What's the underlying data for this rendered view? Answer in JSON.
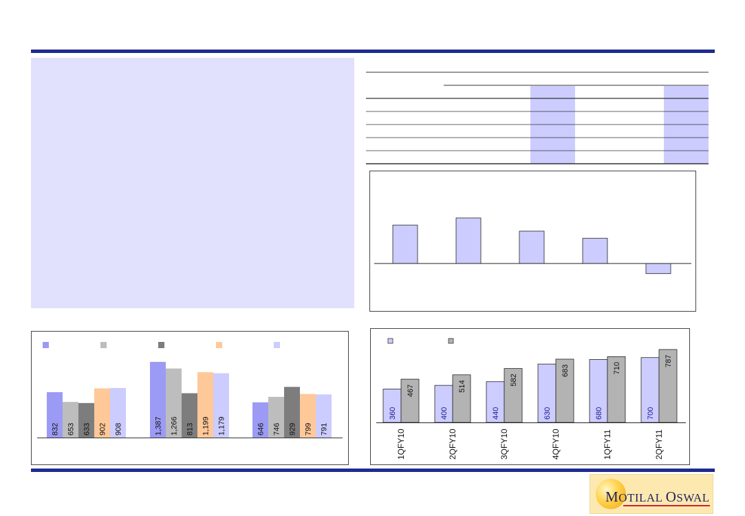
{
  "colors": {
    "brand_bar": "#1f2b8f",
    "text_panel": "#e1e1fe",
    "highlight": "#ccccff"
  },
  "logo": {
    "text_initial_1": "M",
    "text_rest_1": "OTILAL",
    "text_initial_2": "O",
    "text_rest_2": "SWAL"
  },
  "chart_data": [
    {
      "type": "bar",
      "series": [
        {
          "name": "",
          "color": "#9b9bf5",
          "values": [
            832,
            1387,
            646
          ]
        },
        {
          "name": "",
          "color": "#bdbdbd",
          "values": [
            653,
            1266,
            746
          ]
        },
        {
          "name": "",
          "color": "#7d7d7d",
          "values": [
            633,
            813,
            929
          ]
        },
        {
          "name": "",
          "color": "#ffc899",
          "values": [
            902,
            1199,
            799
          ]
        },
        {
          "name": "",
          "color": "#ccccff",
          "values": [
            908,
            1179,
            791
          ]
        }
      ],
      "labels": [
        [
          "832",
          "653",
          "633",
          "902",
          "908"
        ],
        [
          "1,387",
          "1,266",
          "813",
          "1,199",
          "1,179"
        ],
        [
          "646",
          "746",
          "929",
          "799",
          "791"
        ]
      ],
      "ylim": [
        0,
        1600
      ],
      "legend": "top"
    },
    {
      "type": "bar",
      "values": [
        3.8,
        4.5,
        3.2,
        2.5,
        -1.0
      ],
      "ylim": [
        -2.6,
        9.1
      ]
    },
    {
      "type": "bar",
      "categories": [
        "1QFY10",
        "2QFY10",
        "3QFY10",
        "4QFY10",
        "1QFY11",
        "2QFY11"
      ],
      "series": [
        {
          "name": "",
          "color": "#ccccff",
          "values": [
            360,
            400,
            440,
            630,
            680,
            700
          ],
          "labels": [
            "360",
            "400",
            "440",
            "630",
            "680",
            "700"
          ]
        },
        {
          "name": "",
          "color": "#b3b3b3",
          "values": [
            467,
            514,
            582,
            683,
            710,
            787
          ],
          "labels": [
            "467",
            "514",
            "582",
            "683",
            "710",
            "787"
          ]
        }
      ],
      "ylim": [
        0,
        820
      ],
      "legend": "top-left"
    }
  ]
}
